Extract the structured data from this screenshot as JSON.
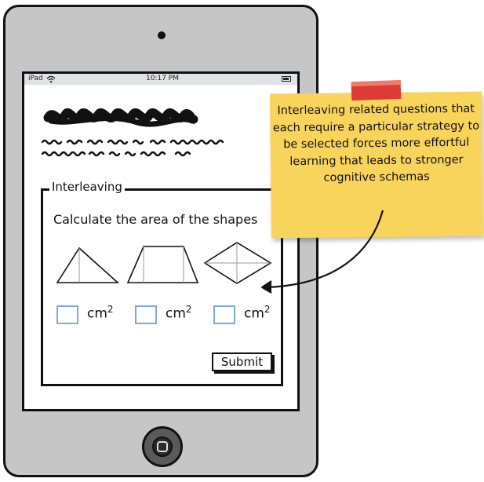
{
  "status_bar": {
    "carrier": "iPad",
    "time": "10:17 PM"
  },
  "fieldset": {
    "legend": "Interleaving",
    "question": "Calculate the area of the shapes"
  },
  "shapes": [
    "triangle-icon",
    "trapezoid-icon",
    "rhombus-icon"
  ],
  "answers": [
    {
      "unit": "cm",
      "exponent": "2"
    },
    {
      "unit": "cm",
      "exponent": "2"
    },
    {
      "unit": "cm",
      "exponent": "2"
    }
  ],
  "submit_label": "Submit",
  "sticky_note": {
    "text": "Interleaving related questions that each require a particular strategy to be selected forces more effortful learning that leads to stronger cognitive schemas"
  },
  "colors": {
    "note": "#f9d45c",
    "tape": "#de3b34",
    "input_border": "#7fa9de",
    "tablet": "#c6c6c6",
    "status_bar": "#dfe3e5"
  }
}
